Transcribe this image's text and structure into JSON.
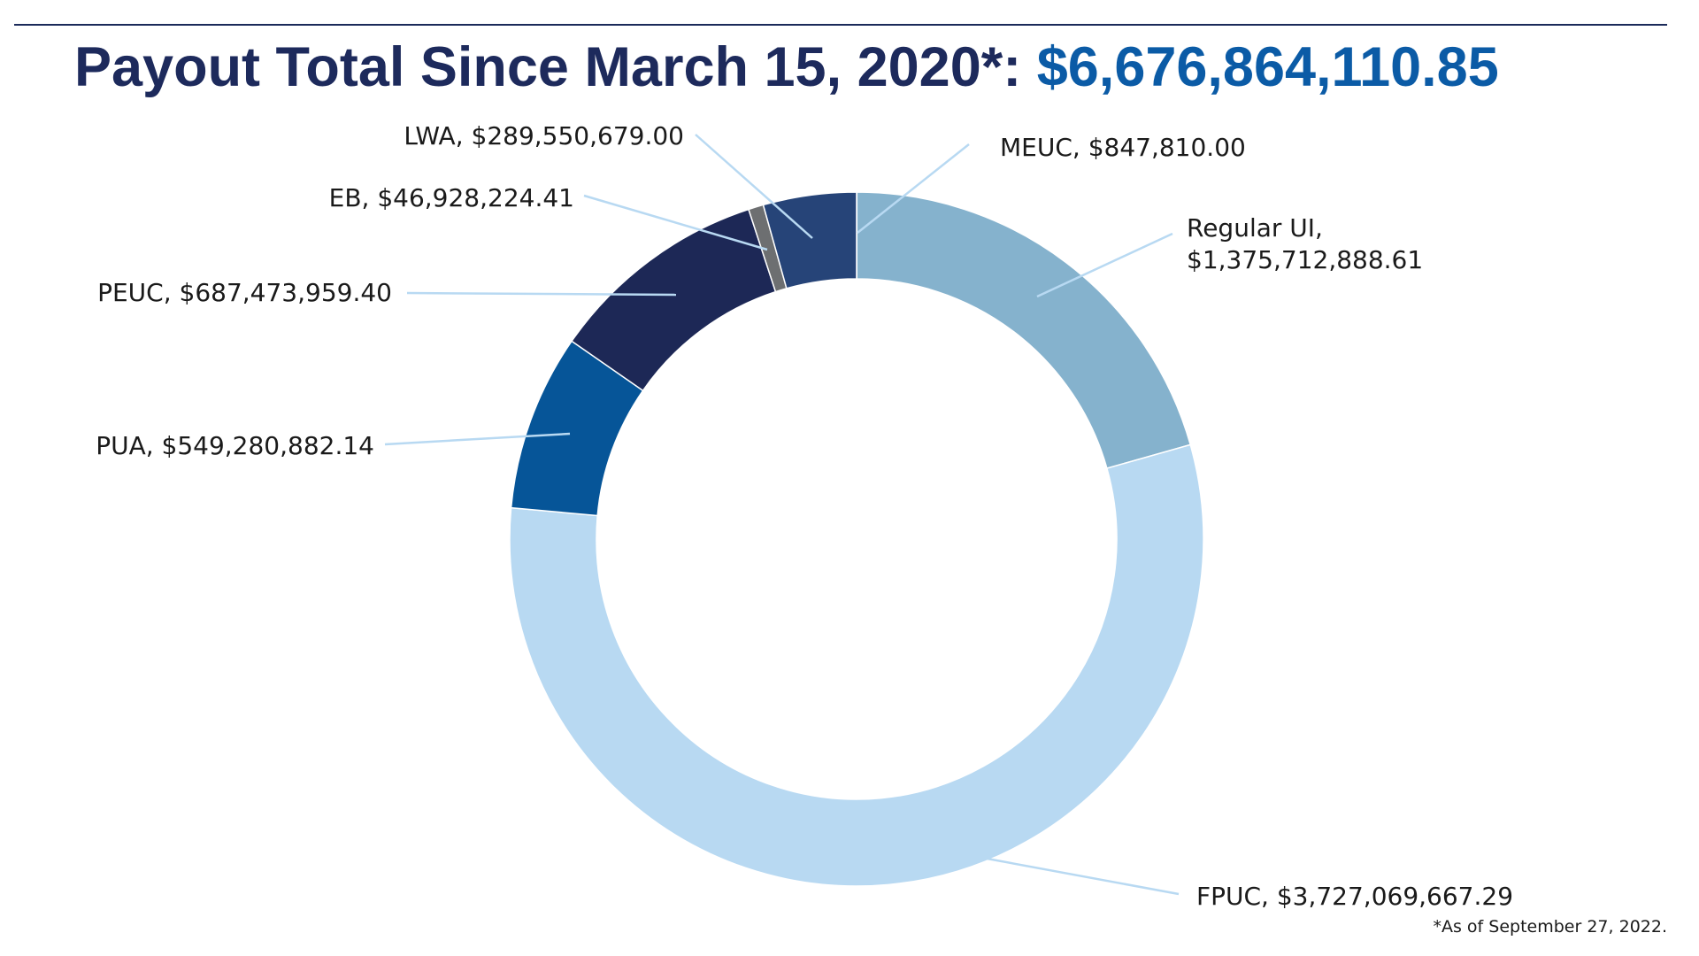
{
  "header": {
    "title_prefix": "Payout Total Since March 15, 2020*: ",
    "total": "$6,676,864,110.85"
  },
  "footnote": "*As of September 27, 2022.",
  "chart_data": {
    "type": "pie",
    "donut": true,
    "start": "12 o'clock",
    "direction": "clockwise",
    "slices": [
      {
        "label": "MEUC",
        "value": 847810.0,
        "display": "MEUC, $847,810.00",
        "color": "#2f5f9e"
      },
      {
        "label": "Regular UI",
        "value": 1375712888.61,
        "display": "Regular UI,",
        "display2": "$1,375,712,888.61",
        "color": "#85b2cd"
      },
      {
        "label": "FPUC",
        "value": 3727069667.29,
        "display": "FPUC, $3,727,069,667.29",
        "color": "#b8d9f2"
      },
      {
        "label": "PUA",
        "value": 549280882.14,
        "display": "PUA, $549,280,882.14",
        "color": "#065598"
      },
      {
        "label": "PEUC",
        "value": 687473959.4,
        "display": "PEUC, $687,473,959.40",
        "color": "#1d2856"
      },
      {
        "label": "EB",
        "value": 46928224.41,
        "display": "EB, $46,928,224.41",
        "color": "#6d6f71"
      },
      {
        "label": "LWA",
        "value": 289550679.0,
        "display": "LWA, $289,550,679.00",
        "color": "#264478"
      }
    ],
    "leader_line_color": "#b8d9f2"
  }
}
